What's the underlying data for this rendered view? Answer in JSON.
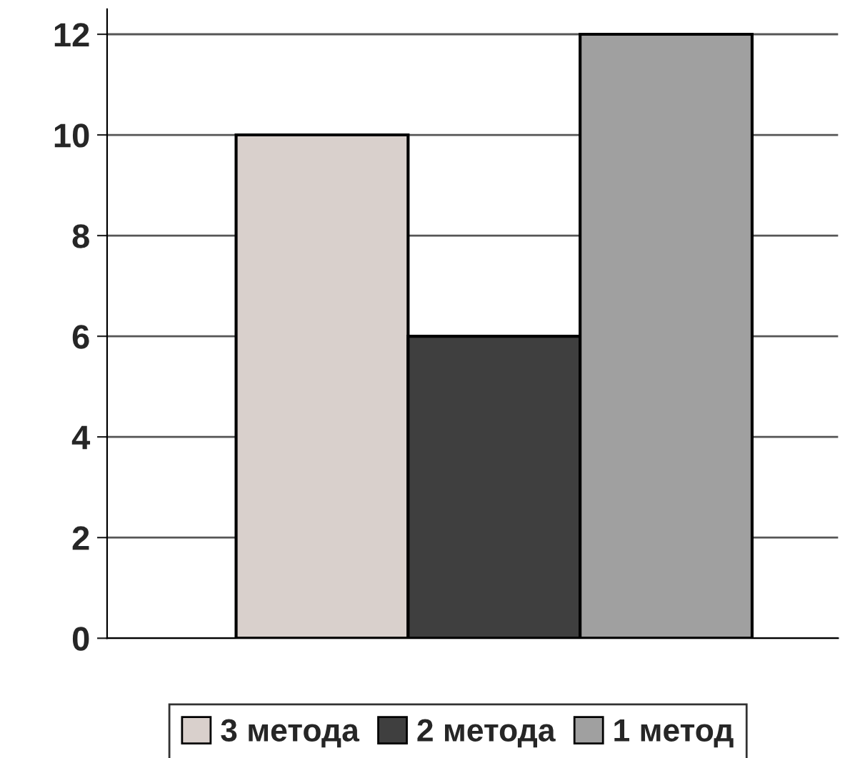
{
  "chart_data": {
    "type": "bar",
    "categories": [
      null,
      null,
      null
    ],
    "series": [
      {
        "name": "3 метода",
        "color": "#d9d0cc",
        "values": [
          10,
          null,
          null
        ]
      },
      {
        "name": "2 метода",
        "color": "#3f3f3f",
        "values": [
          null,
          6,
          null
        ]
      },
      {
        "name": "1 метод",
        "color": "#a0a0a0",
        "values": [
          null,
          null,
          12
        ]
      }
    ],
    "ylim": [
      0,
      12.5
    ],
    "yticks": [
      0,
      2,
      4,
      6,
      8,
      10,
      12
    ],
    "grid": "y",
    "legend": "bottom"
  }
}
